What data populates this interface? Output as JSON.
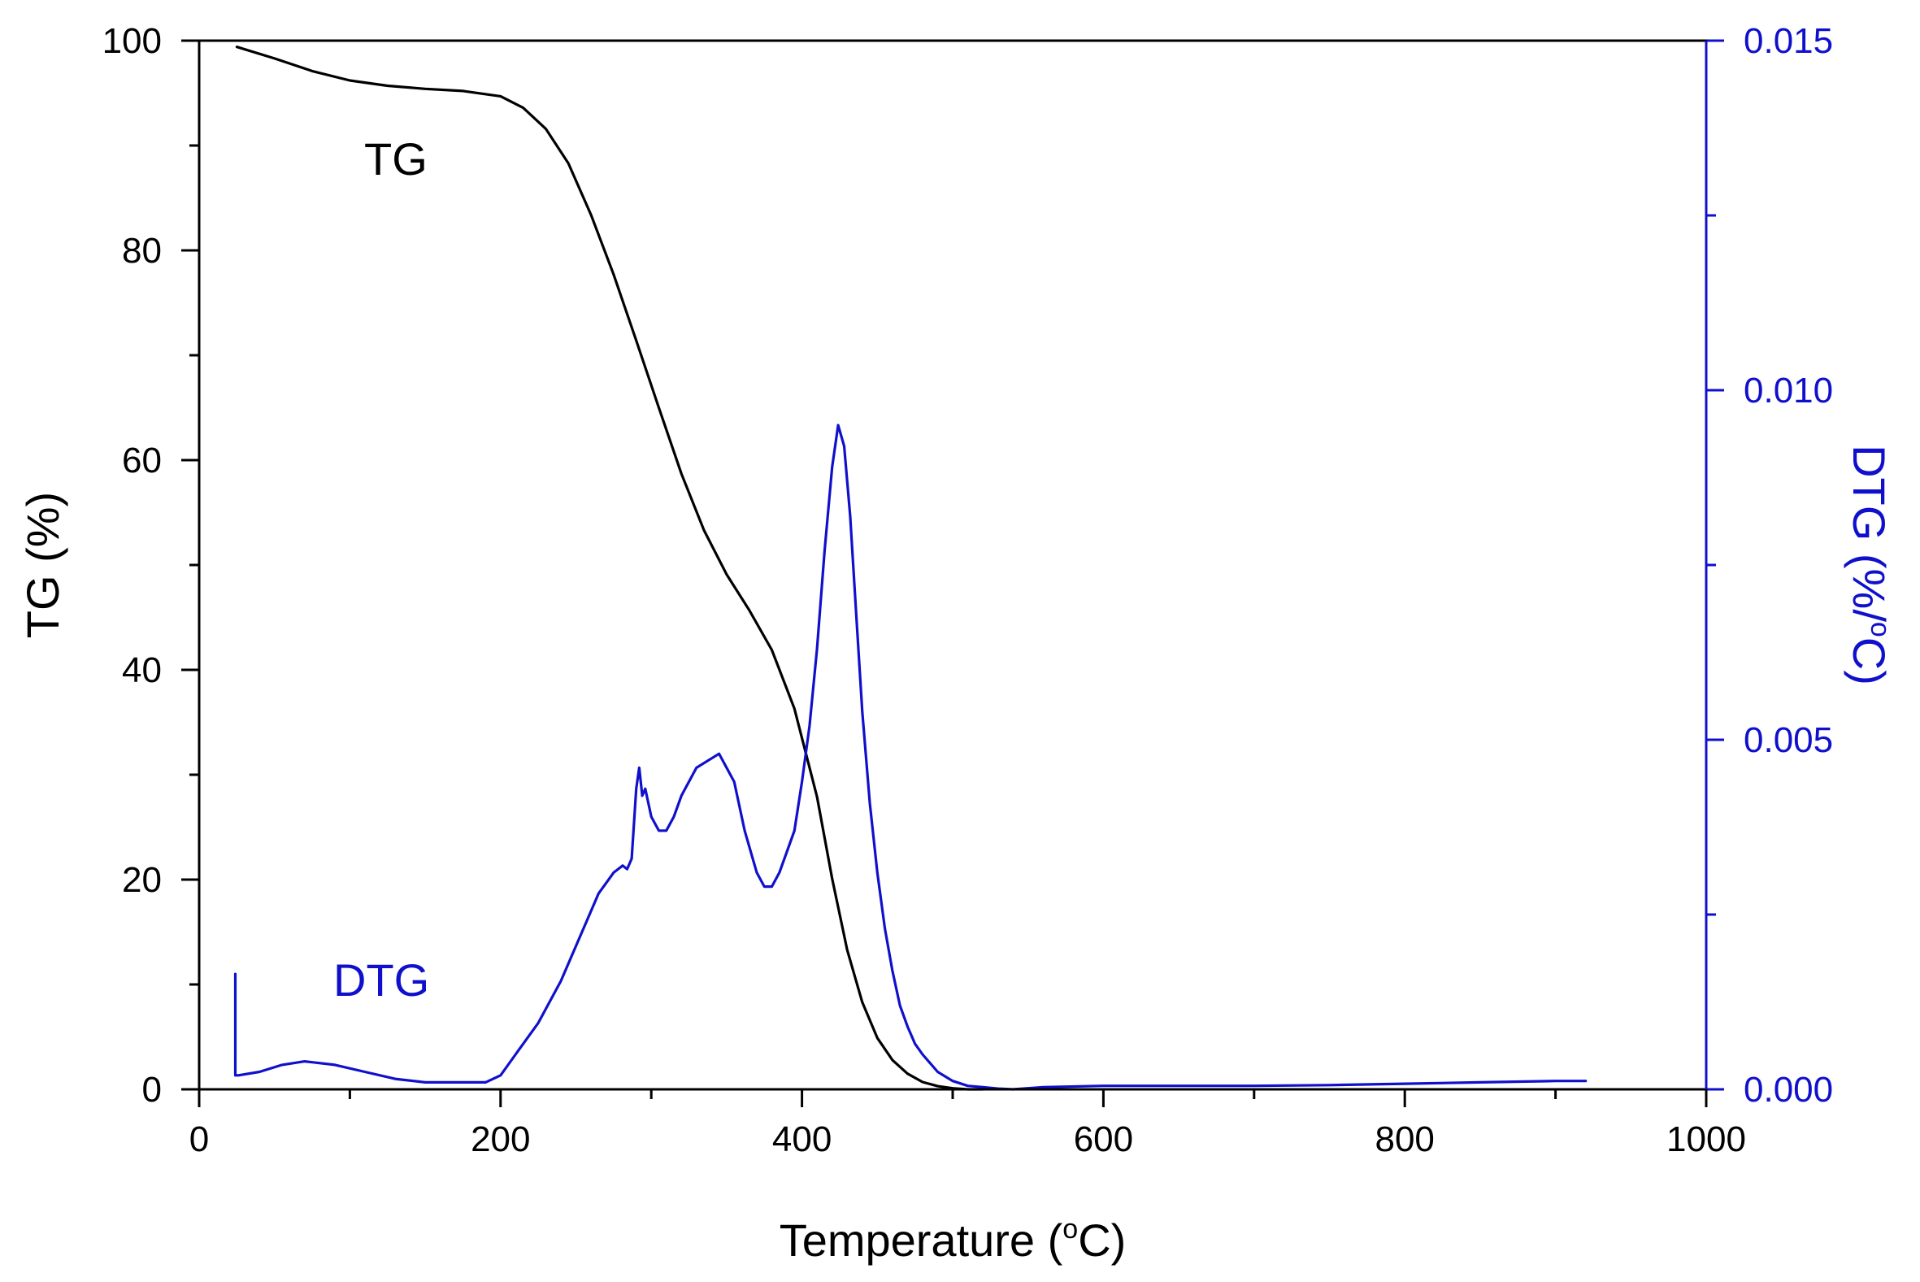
{
  "chart_data": {
    "type": "line",
    "title": "",
    "xlabel_prefix": "Temperature (",
    "xlabel_degree": "o",
    "xlabel_suffix": "C)",
    "ylabel_left": "TG (%)",
    "ylabel_right_prefix": "DTG (%/",
    "ylabel_right_degree": "o",
    "ylabel_right_suffix": "C)",
    "xlim": [
      0,
      1000
    ],
    "ylim_left": [
      0,
      100
    ],
    "ylim_right": [
      0,
      0.015
    ],
    "x_ticks": [
      "0",
      "200",
      "400",
      "600",
      "800",
      "1000"
    ],
    "y_left_ticks": [
      "0",
      "20",
      "40",
      "60",
      "80",
      "100"
    ],
    "y_right_ticks": [
      "0.000",
      "0.005",
      "0.010",
      "0.015"
    ],
    "grid": false,
    "colors": {
      "tg": "#000000",
      "dtg": "#1010cc"
    },
    "annotations": {
      "tg": "TG",
      "dtg": "DTG"
    },
    "series": [
      {
        "name": "TG",
        "axis": "left",
        "x": [
          25,
          50,
          75,
          100,
          125,
          150,
          175,
          200,
          215,
          230,
          245,
          260,
          275,
          290,
          305,
          320,
          335,
          350,
          365,
          380,
          395,
          410,
          420,
          430,
          440,
          450,
          460,
          470,
          480,
          490,
          500,
          510,
          520
        ],
        "y": [
          99.4,
          98.3,
          97.1,
          96.2,
          95.7,
          95.4,
          95.2,
          94.7,
          93.6,
          91.6,
          88.3,
          83.4,
          77.7,
          71.4,
          65.0,
          58.7,
          53.3,
          49.1,
          45.7,
          41.9,
          36.3,
          27.9,
          20.1,
          13.3,
          8.3,
          4.9,
          2.8,
          1.5,
          0.7,
          0.3,
          0.1,
          0.0,
          0.0
        ]
      },
      {
        "name": "DTG",
        "axis": "right",
        "x": [
          24,
          24,
          26,
          40,
          55,
          70,
          90,
          110,
          130,
          150,
          170,
          190,
          200,
          210,
          225,
          240,
          255,
          265,
          275,
          281,
          284,
          287,
          290,
          292,
          294,
          296,
          298,
          300,
          305,
          310,
          315,
          320,
          330,
          345,
          355,
          362,
          370,
          375,
          380,
          385,
          390,
          395,
          400,
          405,
          410,
          415,
          420,
          424,
          428,
          432,
          436,
          440,
          445,
          450,
          455,
          460,
          465,
          470,
          475,
          480,
          490,
          500,
          510,
          520,
          530,
          540,
          560,
          600,
          650,
          700,
          750,
          800,
          850,
          900,
          920
        ],
        "y": [
          0.00165,
          0.0002,
          0.0002,
          0.00025,
          0.00035,
          0.0004,
          0.00035,
          0.00025,
          0.00015,
          0.0001,
          0.0001,
          0.0001,
          0.0002,
          0.0005,
          0.00095,
          0.00155,
          0.0023,
          0.0028,
          0.0031,
          0.0032,
          0.00315,
          0.0033,
          0.0043,
          0.0046,
          0.0042,
          0.0043,
          0.0041,
          0.0039,
          0.0037,
          0.0037,
          0.0039,
          0.0042,
          0.0046,
          0.0048,
          0.0044,
          0.0037,
          0.0031,
          0.0029,
          0.0029,
          0.0031,
          0.0034,
          0.0037,
          0.0044,
          0.0052,
          0.0063,
          0.0077,
          0.0089,
          0.0095,
          0.0092,
          0.0082,
          0.0068,
          0.0054,
          0.0041,
          0.0031,
          0.0023,
          0.0017,
          0.0012,
          0.0009,
          0.00065,
          0.0005,
          0.00025,
          0.00012,
          5e-05,
          3e-05,
          1e-05,
          0.0,
          3e-05,
          5e-05,
          5e-05,
          5e-05,
          6e-05,
          8e-05,
          0.0001,
          0.00012,
          0.00012
        ]
      }
    ]
  }
}
